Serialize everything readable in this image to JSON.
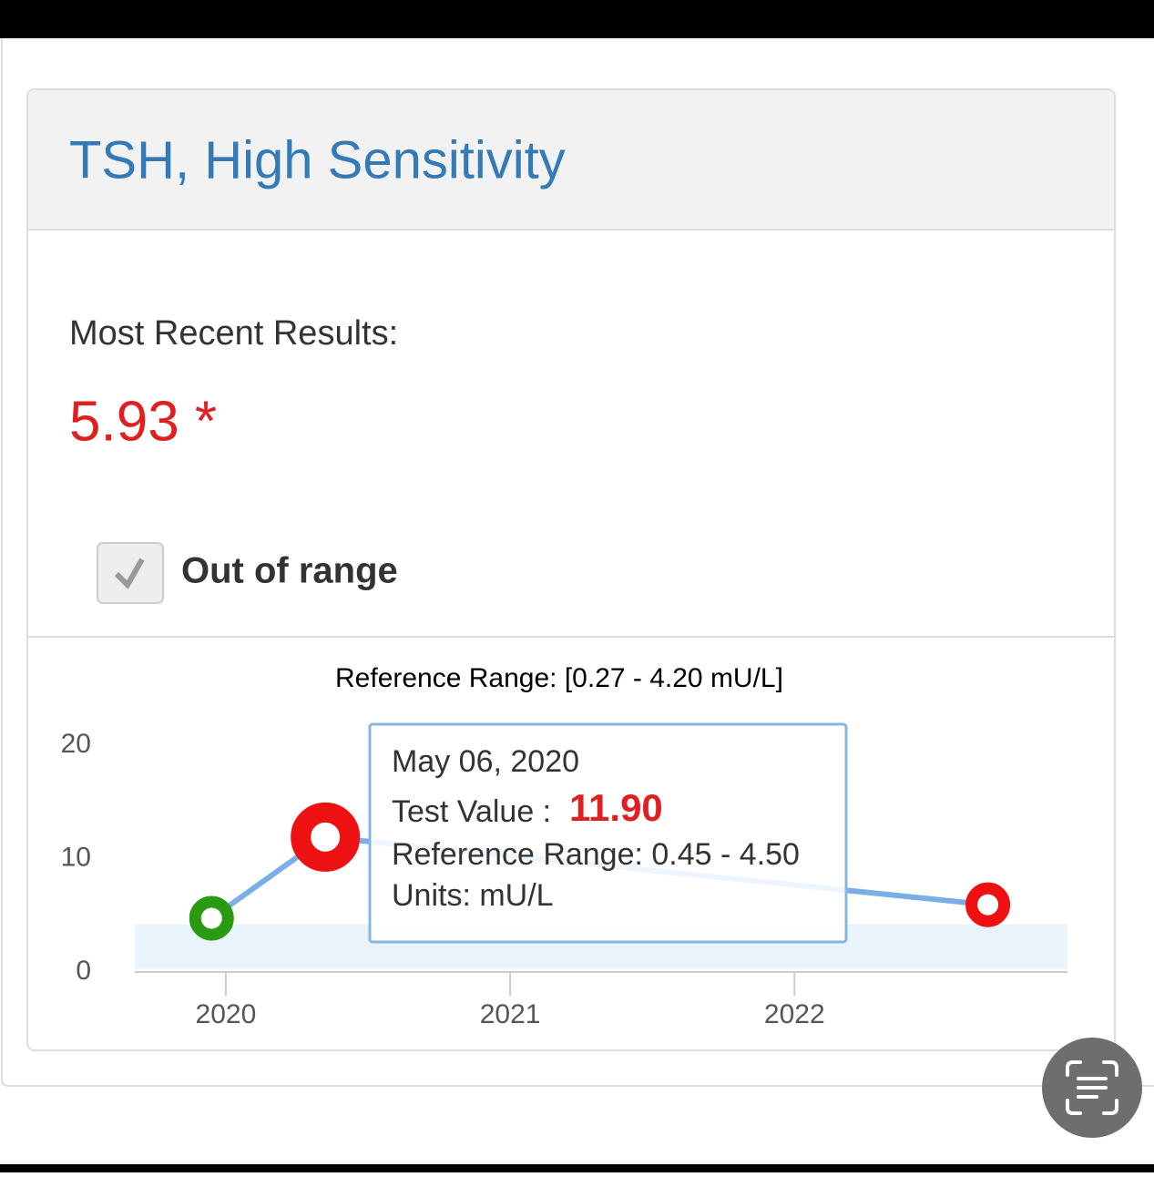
{
  "header": {
    "title": "TSH, High Sensitivity"
  },
  "summary": {
    "label": "Most Recent Results:",
    "value": "5.93 *",
    "checkbox_label": "Out of range"
  },
  "chart_data": {
    "type": "line",
    "title": "Reference Range: [0.27 - 4.20 mU/L]",
    "series": [
      {
        "color": "#7aaee6",
        "x": [
          2019.95,
          2020.35,
          2022.68
        ],
        "values": [
          4.74,
          11.9,
          5.93
        ],
        "point_colors": [
          "#2a9a12",
          "#ee1111",
          "#ee1111"
        ],
        "value_labels": [
          null,
          "11.90",
          null
        ]
      }
    ],
    "xlim": [
      2019.68,
      2022.96
    ],
    "xticks": [
      2020,
      2021,
      2022
    ],
    "ylim": [
      0,
      20
    ],
    "yticks": [
      0,
      10,
      20
    ],
    "band": [
      0.27,
      4.2
    ],
    "band_color": "#e8f3fb",
    "tooltip": {
      "date": "May 06, 2020",
      "value_prefix": "Test Value :",
      "range": "Reference Range: 0.45 - 4.50",
      "units": "Units: mU/L"
    }
  }
}
